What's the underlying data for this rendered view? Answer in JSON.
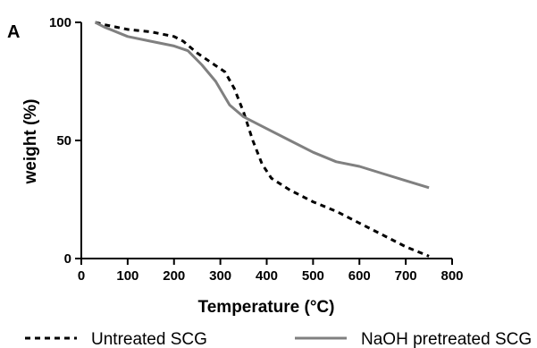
{
  "panel_label": "A",
  "chart_data": {
    "type": "line",
    "xlabel": "Temperature (°C)",
    "ylabel": "weight (%)",
    "xlim": [
      0,
      800
    ],
    "ylim": [
      0,
      100
    ],
    "x_ticks": [
      0,
      100,
      200,
      300,
      400,
      500,
      600,
      700,
      800
    ],
    "y_ticks": [
      0,
      50,
      100
    ],
    "grid": false,
    "legend_position": "bottom",
    "series": [
      {
        "name": "Untreated SCG",
        "style": "dashed",
        "color": "#000000",
        "x": [
          30,
          50,
          100,
          150,
          200,
          220,
          250,
          280,
          310,
          330,
          350,
          370,
          390,
          410,
          450,
          500,
          550,
          600,
          650,
          700,
          750
        ],
        "y": [
          100,
          99,
          97,
          96,
          94,
          92,
          87,
          83,
          79,
          72,
          62,
          50,
          40,
          34,
          29,
          24,
          20,
          15,
          10,
          5,
          1
        ]
      },
      {
        "name": "NaOH pretreated SCG",
        "style": "solid",
        "color": "#808080",
        "x": [
          30,
          50,
          100,
          150,
          200,
          230,
          260,
          290,
          320,
          350,
          400,
          450,
          500,
          550,
          600,
          650,
          700,
          750
        ],
        "y": [
          100,
          98,
          94,
          92,
          90,
          88,
          82,
          75,
          65,
          60,
          55,
          50,
          45,
          41,
          39,
          36,
          33,
          30
        ]
      }
    ]
  }
}
